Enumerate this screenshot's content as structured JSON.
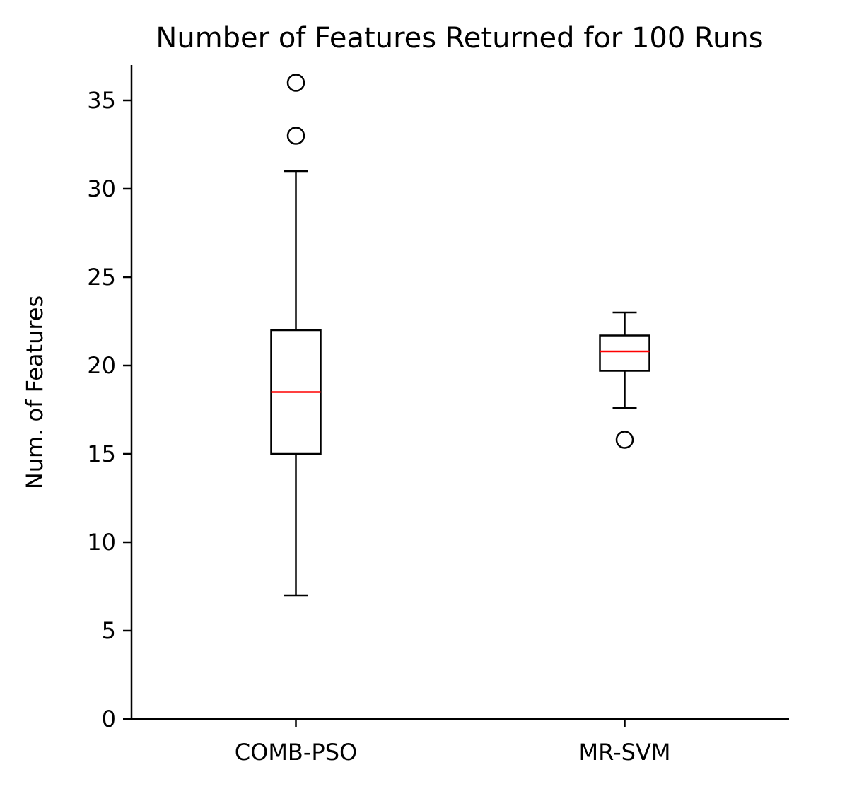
{
  "chart_data": {
    "type": "box",
    "title": "Number of Features Returned for 100 Runs",
    "xlabel": "",
    "ylabel": "Num. of Features",
    "ylim": [
      0,
      37
    ],
    "y_ticks": [
      0,
      5,
      10,
      15,
      20,
      25,
      30,
      35
    ],
    "grid": false,
    "categories": [
      "COMB-PSO",
      "MR-SVM"
    ],
    "boxes": [
      {
        "category": "COMB-PSO",
        "whisker_low": 7,
        "q1": 15,
        "median": 18.5,
        "q3": 22,
        "whisker_high": 31,
        "outliers": [
          33,
          36
        ]
      },
      {
        "category": "MR-SVM",
        "whisker_low": 17.6,
        "q1": 19.7,
        "median": 20.8,
        "q3": 21.7,
        "whisker_high": 23,
        "outliers": [
          15.8
        ]
      }
    ],
    "colors": {
      "box": "#000000",
      "median": "#ff0000",
      "outlier": "#000000"
    }
  }
}
